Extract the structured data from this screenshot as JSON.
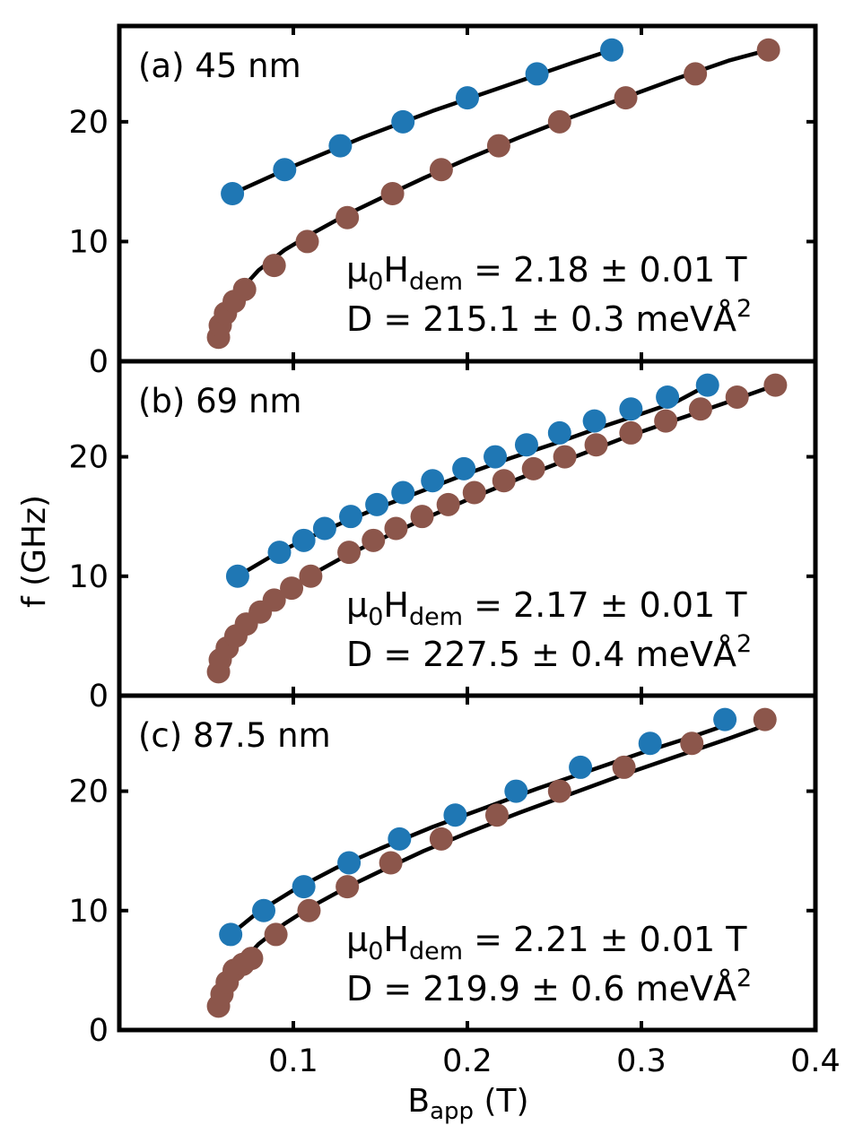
{
  "chart_data": {
    "type": "scatter",
    "xlabel": {
      "main": "B",
      "sub": "app",
      "unit": " (T)"
    },
    "ylabel": "f (GHz)",
    "xlim": [
      0.0,
      0.4
    ],
    "xticks": [
      0.1,
      0.2,
      0.3,
      0.4
    ],
    "xtick_labels": [
      "0.1",
      "0.2",
      "0.3",
      "0.4"
    ],
    "ylim": [
      0,
      28
    ],
    "yticks": [
      0,
      10,
      20
    ],
    "ytick_labels": [
      "0",
      "10",
      "20"
    ],
    "colors": {
      "blue": "#1f77b4",
      "brown": "#8c564b",
      "fit": "#000000",
      "axes": "#000000"
    },
    "panels": [
      {
        "label": "(a)  45 nm",
        "annotation": {
          "line1_prefix": "μ",
          "line1_sub0": "0",
          "line1_h": "H",
          "line1_subdem": "dem",
          "line1_rest": " = 2.18 ± 0.01 T",
          "line2": "D = 215.1 ± 0.3 meVÅ",
          "line2_sup": "2"
        },
        "series": [
          {
            "name": "blue",
            "color": "#1f77b4",
            "x": [
              0.065,
              0.095,
              0.127,
              0.163,
              0.2,
              0.24,
              0.283
            ],
            "y": [
              14,
              16,
              18,
              20,
              22,
              24,
              26
            ],
            "fit_x": [
              0.065,
              0.1,
              0.14,
              0.18,
              0.22,
              0.26,
              0.283
            ],
            "fit_y": [
              14.0,
              16.3,
              18.7,
              20.9,
              22.9,
              24.9,
              26.0
            ]
          },
          {
            "name": "brown",
            "color": "#8c564b",
            "x": [
              0.057,
              0.058,
              0.061,
              0.066,
              0.072,
              0.089,
              0.108,
              0.131,
              0.157,
              0.185,
              0.218,
              0.253,
              0.291,
              0.331,
              0.373
            ],
            "y": [
              2,
              3,
              4,
              5,
              6,
              8,
              10,
              12,
              14,
              16,
              18,
              20,
              22,
              24,
              26
            ],
            "fit_x": [
              0.058,
              0.062,
              0.07,
              0.08,
              0.095,
              0.11,
              0.13,
              0.15,
              0.175,
              0.2,
              0.23,
              0.26,
              0.29,
              0.32,
              0.35,
              0.373
            ],
            "fit_y": [
              2.2,
              4.3,
              6.0,
              7.6,
              9.3,
              10.6,
              12.2,
              13.6,
              15.3,
              16.9,
              18.7,
              20.4,
              22.0,
              23.6,
              25.1,
              26.0
            ]
          }
        ]
      },
      {
        "label": "(b)  69 nm",
        "annotation": {
          "line1_prefix": "μ",
          "line1_sub0": "0",
          "line1_h": "H",
          "line1_subdem": "dem",
          "line1_rest": " = 2.17 ± 0.01 T",
          "line2": "D = 227.5 ± 0.4 meVÅ",
          "line2_sup": "2"
        },
        "series": [
          {
            "name": "blue",
            "color": "#1f77b4",
            "x": [
              0.068,
              0.092,
              0.106,
              0.118,
              0.133,
              0.148,
              0.163,
              0.18,
              0.198,
              0.216,
              0.234,
              0.253,
              0.273,
              0.294,
              0.315,
              0.338
            ],
            "y": [
              10,
              12,
              13,
              14,
              15,
              16,
              17,
              18,
              19,
              20,
              21,
              22,
              23,
              24,
              25,
              26
            ],
            "fit_x": [
              0.068,
              0.09,
              0.11,
              0.13,
              0.15,
              0.175,
              0.2,
              0.225,
              0.25,
              0.275,
              0.3,
              0.32,
              0.338
            ],
            "fit_y": [
              10.0,
              11.9,
              13.3,
              14.6,
              15.8,
              17.2,
              18.6,
              19.9,
              21.1,
              22.4,
              23.6,
              24.6,
              26.0
            ]
          },
          {
            "name": "brown",
            "color": "#8c564b",
            "x": [
              0.057,
              0.058,
              0.062,
              0.067,
              0.073,
              0.081,
              0.089,
              0.099,
              0.11,
              0.132,
              0.146,
              0.159,
              0.174,
              0.189,
              0.204,
              0.221,
              0.238,
              0.256,
              0.274,
              0.294,
              0.314,
              0.334,
              0.355,
              0.377
            ],
            "y": [
              2,
              3,
              4,
              5,
              6,
              7,
              8,
              9,
              10,
              12,
              13,
              14,
              15,
              16,
              17,
              18,
              19,
              20,
              21,
              22,
              23,
              24,
              25,
              26
            ],
            "fit_x": [
              0.058,
              0.062,
              0.07,
              0.08,
              0.095,
              0.11,
              0.13,
              0.15,
              0.175,
              0.2,
              0.23,
              0.26,
              0.29,
              0.32,
              0.35,
              0.377
            ],
            "fit_y": [
              2.3,
              4.0,
              5.7,
              7.1,
              8.7,
              10.1,
              11.7,
              13.1,
              14.8,
              16.4,
              18.2,
              19.9,
              21.6,
              23.1,
              24.6,
              26.0
            ]
          }
        ]
      },
      {
        "label": "(c)  87.5 nm",
        "annotation": {
          "line1_prefix": "μ",
          "line1_sub0": "0",
          "line1_h": "H",
          "line1_subdem": "dem",
          "line1_rest": " = 2.21 ± 0.01 T",
          "line2": "D = 219.9 ± 0.6 meVÅ",
          "line2_sup": "2"
        },
        "series": [
          {
            "name": "blue",
            "color": "#1f77b4",
            "x": [
              0.064,
              0.083,
              0.106,
              0.132,
              0.161,
              0.193,
              0.228,
              0.265,
              0.305,
              0.348
            ],
            "y": [
              8,
              10,
              12,
              14,
              16,
              18,
              20,
              22,
              24,
              26
            ],
            "fit_x": [
              0.064,
              0.08,
              0.1,
              0.125,
              0.15,
              0.18,
              0.21,
              0.24,
              0.27,
              0.3,
              0.33,
              0.348
            ],
            "fit_y": [
              8.0,
              9.9,
              11.7,
              13.6,
              15.2,
              17.0,
              18.6,
              20.2,
              21.7,
              23.2,
              24.6,
              25.5
            ]
          },
          {
            "name": "brown",
            "color": "#8c564b",
            "x": [
              0.057,
              0.059,
              0.062,
              0.066,
              0.071,
              0.076,
              0.09,
              0.109,
              0.131,
              0.156,
              0.185,
              0.217,
              0.253,
              0.29,
              0.329,
              0.371
            ],
            "y": [
              2,
              3,
              4,
              5,
              5.5,
              6,
              8,
              10,
              12,
              14,
              16,
              18,
              20,
              22,
              24,
              26
            ],
            "fit_x": [
              0.058,
              0.062,
              0.07,
              0.08,
              0.095,
              0.11,
              0.13,
              0.15,
              0.175,
              0.2,
              0.23,
              0.26,
              0.29,
              0.32,
              0.35,
              0.371
            ],
            "fit_y": [
              1.8,
              3.9,
              5.6,
              7.2,
              8.9,
              10.3,
              11.9,
              13.3,
              15.0,
              16.5,
              18.2,
              19.8,
              21.4,
              22.9,
              24.4,
              25.5
            ]
          }
        ]
      }
    ]
  }
}
